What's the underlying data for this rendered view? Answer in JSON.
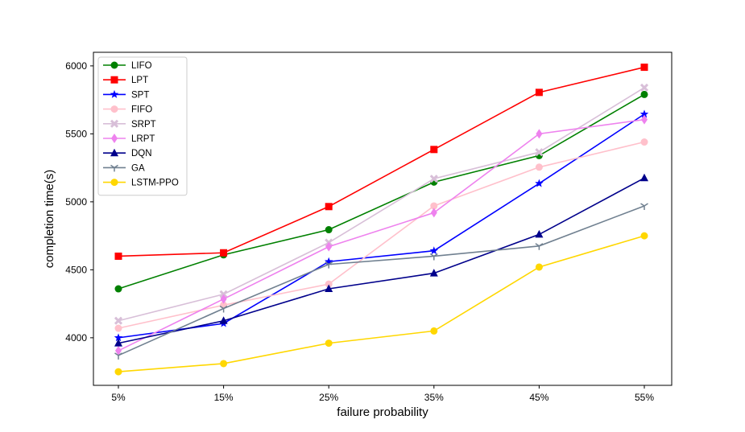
{
  "chart_data": {
    "type": "line",
    "title": "",
    "xlabel": "failure probability",
    "ylabel": "completion time(s)",
    "categories": [
      "5%",
      "15%",
      "25%",
      "35%",
      "45%",
      "55%"
    ],
    "ylim": [
      3650,
      6100
    ],
    "yticks": [
      4000,
      4500,
      5000,
      5500,
      6000
    ],
    "grid": false,
    "legend_position": "top-left",
    "series": [
      {
        "name": "LIFO",
        "color": "#008000",
        "marker": "circle",
        "values": [
          4360,
          4610,
          4795,
          5145,
          5340,
          5790
        ]
      },
      {
        "name": "LPT",
        "color": "#ff0000",
        "marker": "square",
        "values": [
          4600,
          4625,
          4965,
          5385,
          5805,
          5990
        ]
      },
      {
        "name": "SPT",
        "color": "#0000ff",
        "marker": "star",
        "values": [
          4000,
          4105,
          4560,
          4640,
          5135,
          5645
        ]
      },
      {
        "name": "FIFO",
        "color": "#ffc0cb",
        "marker": "circle",
        "values": [
          4070,
          4240,
          4395,
          4970,
          5255,
          5440
        ]
      },
      {
        "name": "SRPT",
        "color": "#d8bfd8",
        "marker": "x",
        "values": [
          4125,
          4320,
          4700,
          5170,
          5365,
          5840
        ]
      },
      {
        "name": "LRPT",
        "color": "#ee82ee",
        "marker": "diamond",
        "values": [
          3905,
          4285,
          4670,
          4920,
          5500,
          5605
        ]
      },
      {
        "name": "DQN",
        "color": "#00008b",
        "marker": "triangle",
        "values": [
          3960,
          4125,
          4360,
          4475,
          4760,
          5175
        ]
      },
      {
        "name": "GA",
        "color": "#708090",
        "marker": "tri-down",
        "values": [
          3870,
          4215,
          4540,
          4600,
          4675,
          4970
        ]
      },
      {
        "name": "LSTM-PPO",
        "color": "#ffd700",
        "marker": "circle",
        "values": [
          3750,
          3810,
          3960,
          4050,
          4520,
          4750
        ]
      }
    ]
  }
}
